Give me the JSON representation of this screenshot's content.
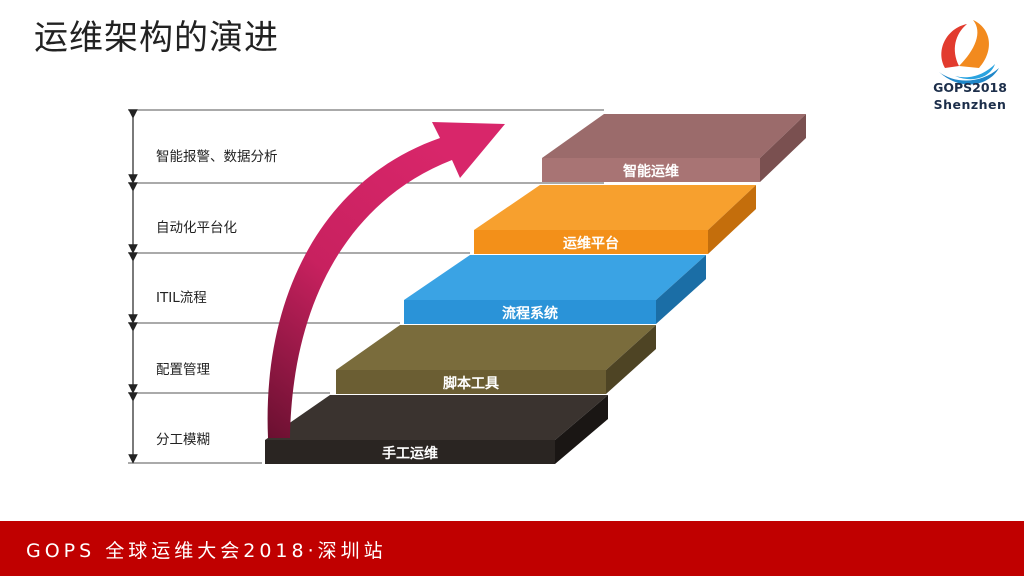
{
  "title": "运维架构的演进",
  "logo": {
    "line1": "GOPS2018",
    "line2": "Shenzhen"
  },
  "levels": [
    {
      "label": "智能报警、数据分析"
    },
    {
      "label": "自动化平台化"
    },
    {
      "label": "ITIL流程"
    },
    {
      "label": "配置管理"
    },
    {
      "label": "分工模糊"
    }
  ],
  "steps": [
    {
      "label": "手工运维",
      "color": "#2a2522"
    },
    {
      "label": "脚本工具",
      "color": "#6b5e33"
    },
    {
      "label": "流程系统",
      "color": "#2a93d8"
    },
    {
      "label": "运维平台",
      "color": "#f39019"
    },
    {
      "label": "智能运维",
      "color": "#9b6b6b"
    }
  ],
  "arrow_color": "#c8215f",
  "footer": {
    "text": "GOPS 全球运维大会2018·深圳站"
  }
}
